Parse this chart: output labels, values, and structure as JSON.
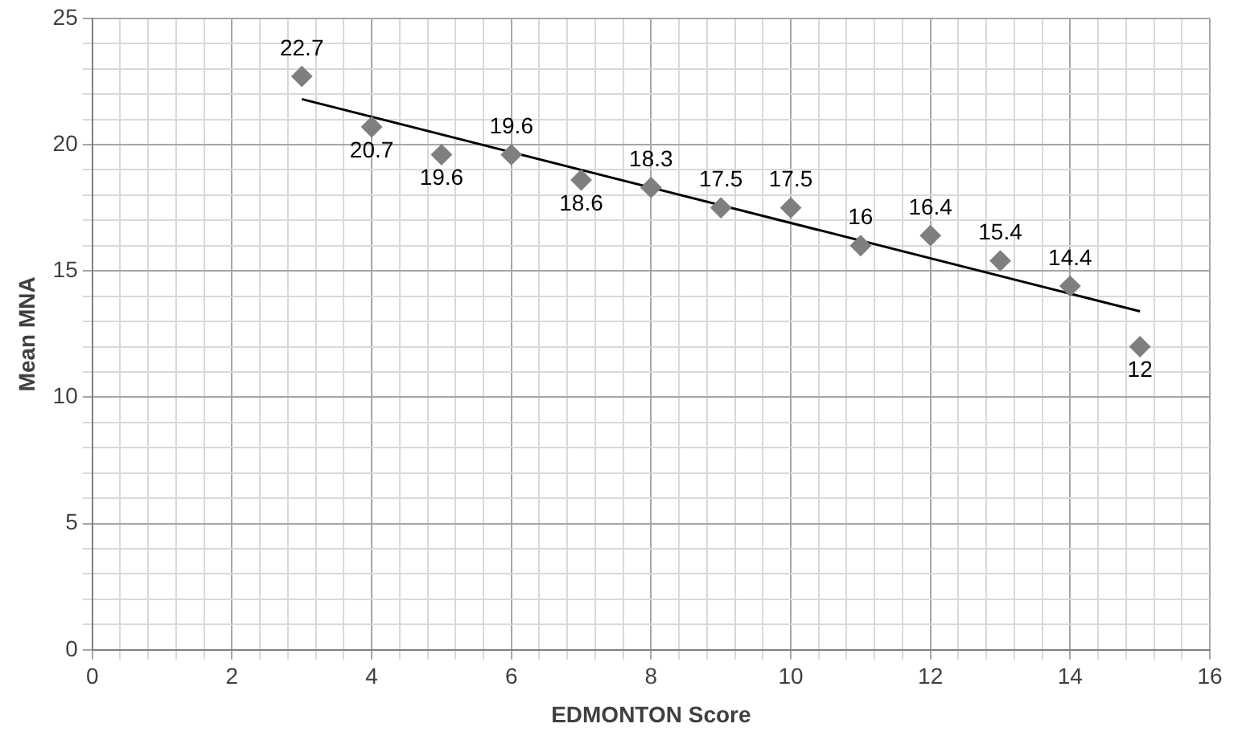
{
  "chart_data": {
    "type": "scatter",
    "xlabel": "EDMONTON Score",
    "ylabel": "Mean MNA",
    "grid": true,
    "marker": "diamond",
    "xlim": [
      0,
      16
    ],
    "ylim": [
      0,
      25
    ],
    "xticks": [
      0,
      {
        "value": 0.4,
        "label": null
      },
      {
        "value": 0.8,
        "label": null
      },
      {
        "value": 1.2,
        "label": null
      },
      {
        "value": 1.6,
        "label": null
      },
      2,
      {
        "value": 2.4,
        "label": null
      },
      {
        "value": 2.8,
        "label": null
      },
      {
        "value": 3.2,
        "label": null
      },
      {
        "value": 3.6,
        "label": null
      },
      4,
      {
        "value": 4.4,
        "label": null
      },
      {
        "value": 4.8,
        "label": null
      },
      {
        "value": 5.2,
        "label": null
      },
      {
        "value": 5.6,
        "label": null
      },
      6,
      {
        "value": 6.4,
        "label": null
      },
      {
        "value": 6.8,
        "label": null
      },
      {
        "value": 7.2,
        "label": null
      },
      {
        "value": 7.6,
        "label": null
      },
      8,
      {
        "value": 8.4,
        "label": null
      },
      {
        "value": 8.8,
        "label": null
      },
      {
        "value": 9.2,
        "label": null
      },
      {
        "value": 9.6,
        "label": null
      },
      10,
      {
        "value": 10.4,
        "label": null
      },
      {
        "value": 10.8,
        "label": null
      },
      {
        "value": 11.2,
        "label": null
      },
      {
        "value": 11.6,
        "label": null
      },
      12,
      {
        "value": 12.4,
        "label": null
      },
      {
        "value": 12.8,
        "label": null
      },
      {
        "value": 13.2,
        "label": null
      },
      {
        "value": 13.6,
        "label": null
      },
      14,
      {
        "value": 14.4,
        "label": null
      },
      {
        "value": 14.8,
        "label": null
      },
      {
        "value": 15.2,
        "label": null
      },
      {
        "value": 15.6,
        "label": null
      },
      16
    ],
    "yticks": [
      0,
      {
        "value": 1,
        "label": null
      },
      {
        "value": 2,
        "label": null
      },
      {
        "value": 3,
        "label": null
      },
      {
        "value": 4,
        "label": null
      },
      5,
      {
        "value": 6,
        "label": null
      },
      {
        "value": 7,
        "label": null
      },
      {
        "value": 8,
        "label": null
      },
      {
        "value": 9,
        "label": null
      },
      10,
      {
        "value": 11,
        "label": null
      },
      {
        "value": 12,
        "label": null
      },
      {
        "value": 13,
        "label": null
      },
      {
        "value": 14,
        "label": null
      },
      15,
      {
        "value": 16,
        "label": null
      },
      {
        "value": 17,
        "label": null
      },
      {
        "value": 18,
        "label": null
      },
      {
        "value": 19,
        "label": null
      },
      20,
      {
        "value": 21,
        "label": null
      },
      {
        "value": 22,
        "label": null
      },
      {
        "value": 23,
        "label": null
      },
      {
        "value": 24,
        "label": null
      },
      25
    ],
    "series": [
      {
        "type": "scatter",
        "color": "#7f7f7f",
        "x": [
          3,
          4,
          5,
          6,
          7,
          8,
          9,
          10,
          11,
          12,
          13,
          14,
          15
        ],
        "values": [
          22.7,
          20.7,
          19.6,
          19.6,
          18.6,
          18.3,
          17.5,
          17.5,
          16,
          16.4,
          15.4,
          14.4,
          12
        ],
        "value_labels": [
          "22.7",
          "20.7",
          "19.6",
          "19.6",
          "18.6",
          "18.3",
          "17.5",
          "17.5",
          "16",
          "16.4",
          "15.4",
          "14.4",
          "12"
        ]
      },
      {
        "type": "line",
        "color": "#000000",
        "marker": "none",
        "x": [
          3,
          15
        ],
        "values": [
          21.8,
          13.4
        ]
      }
    ]
  }
}
